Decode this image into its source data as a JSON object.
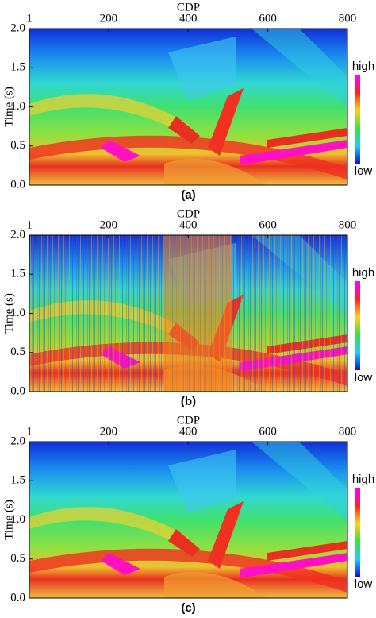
{
  "chart_data": [
    {
      "type": "heatmap",
      "xlabel": "CDP",
      "ylabel": "Time (s)",
      "caption": "(a)",
      "xlim": [
        1,
        800
      ],
      "xticks": [
        1,
        200,
        400,
        600,
        800
      ],
      "ylim": [
        2,
        0
      ],
      "yticks": [
        {
          "value": 0,
          "label": "0.0"
        },
        0.5,
        {
          "value": 1,
          "label": "1.0"
        },
        1.5,
        {
          "value": 2,
          "label": "2.0"
        }
      ],
      "colorbar": {
        "high": "high",
        "low": "low"
      }
    },
    {
      "type": "heatmap",
      "xlabel": "CDP",
      "ylabel": "Time (s)",
      "caption": "(b)",
      "xlim": [
        1,
        800
      ],
      "xticks": [
        1,
        200,
        400,
        600,
        800
      ],
      "ylim": [
        2,
        0
      ],
      "yticks": [
        {
          "value": 0,
          "label": "0.0"
        },
        0.5,
        {
          "value": 1,
          "label": "1.0"
        },
        1.5,
        {
          "value": 2,
          "label": "2.0"
        }
      ],
      "colorbar": {
        "high": "high",
        "low": "low"
      },
      "noisy": true
    },
    {
      "type": "heatmap",
      "xlabel": "CDP",
      "ylabel": "Time (s)",
      "caption": "(c)",
      "xlim": [
        1,
        800
      ],
      "xticks": [
        1,
        200,
        400,
        600,
        800
      ],
      "ylim": [
        2,
        0
      ],
      "yticks": [
        {
          "value": 0,
          "label": "0.0"
        },
        0.5,
        {
          "value": 1,
          "label": "1.0"
        },
        1.5,
        {
          "value": 2,
          "label": "2.0"
        }
      ],
      "colorbar": {
        "high": "high",
        "low": "low"
      }
    }
  ]
}
